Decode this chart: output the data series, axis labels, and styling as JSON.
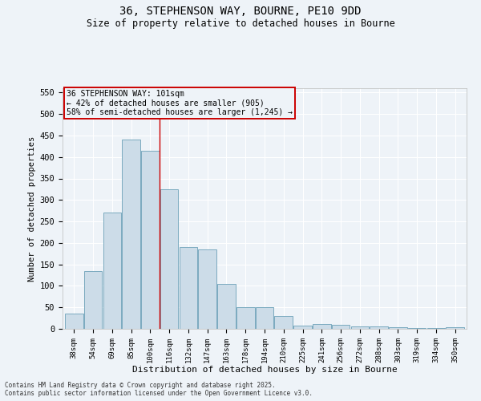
{
  "title_line1": "36, STEPHENSON WAY, BOURNE, PE10 9DD",
  "title_line2": "Size of property relative to detached houses in Bourne",
  "xlabel": "Distribution of detached houses by size in Bourne",
  "ylabel": "Number of detached properties",
  "categories": [
    "38sqm",
    "54sqm",
    "69sqm",
    "85sqm",
    "100sqm",
    "116sqm",
    "132sqm",
    "147sqm",
    "163sqm",
    "178sqm",
    "194sqm",
    "210sqm",
    "225sqm",
    "241sqm",
    "256sqm",
    "272sqm",
    "288sqm",
    "303sqm",
    "319sqm",
    "334sqm",
    "350sqm"
  ],
  "values": [
    35,
    135,
    270,
    440,
    415,
    325,
    190,
    185,
    105,
    50,
    50,
    30,
    8,
    12,
    10,
    5,
    5,
    3,
    2,
    2,
    3
  ],
  "bar_color": "#ccdce8",
  "bar_edge_color": "#7aaabf",
  "reference_line_x": 4.5,
  "reference_line_color": "#cc0000",
  "box_text_line1": "36 STEPHENSON WAY: 101sqm",
  "box_text_line2": "← 42% of detached houses are smaller (905)",
  "box_text_line3": "58% of semi-detached houses are larger (1,245) →",
  "box_edge_color": "#cc0000",
  "ylim": [
    0,
    560
  ],
  "yticks": [
    0,
    50,
    100,
    150,
    200,
    250,
    300,
    350,
    400,
    450,
    500,
    550
  ],
  "background_color": "#eef3f8",
  "grid_color": "#ffffff",
  "footer_line1": "Contains HM Land Registry data © Crown copyright and database right 2025.",
  "footer_line2": "Contains public sector information licensed under the Open Government Licence v3.0."
}
